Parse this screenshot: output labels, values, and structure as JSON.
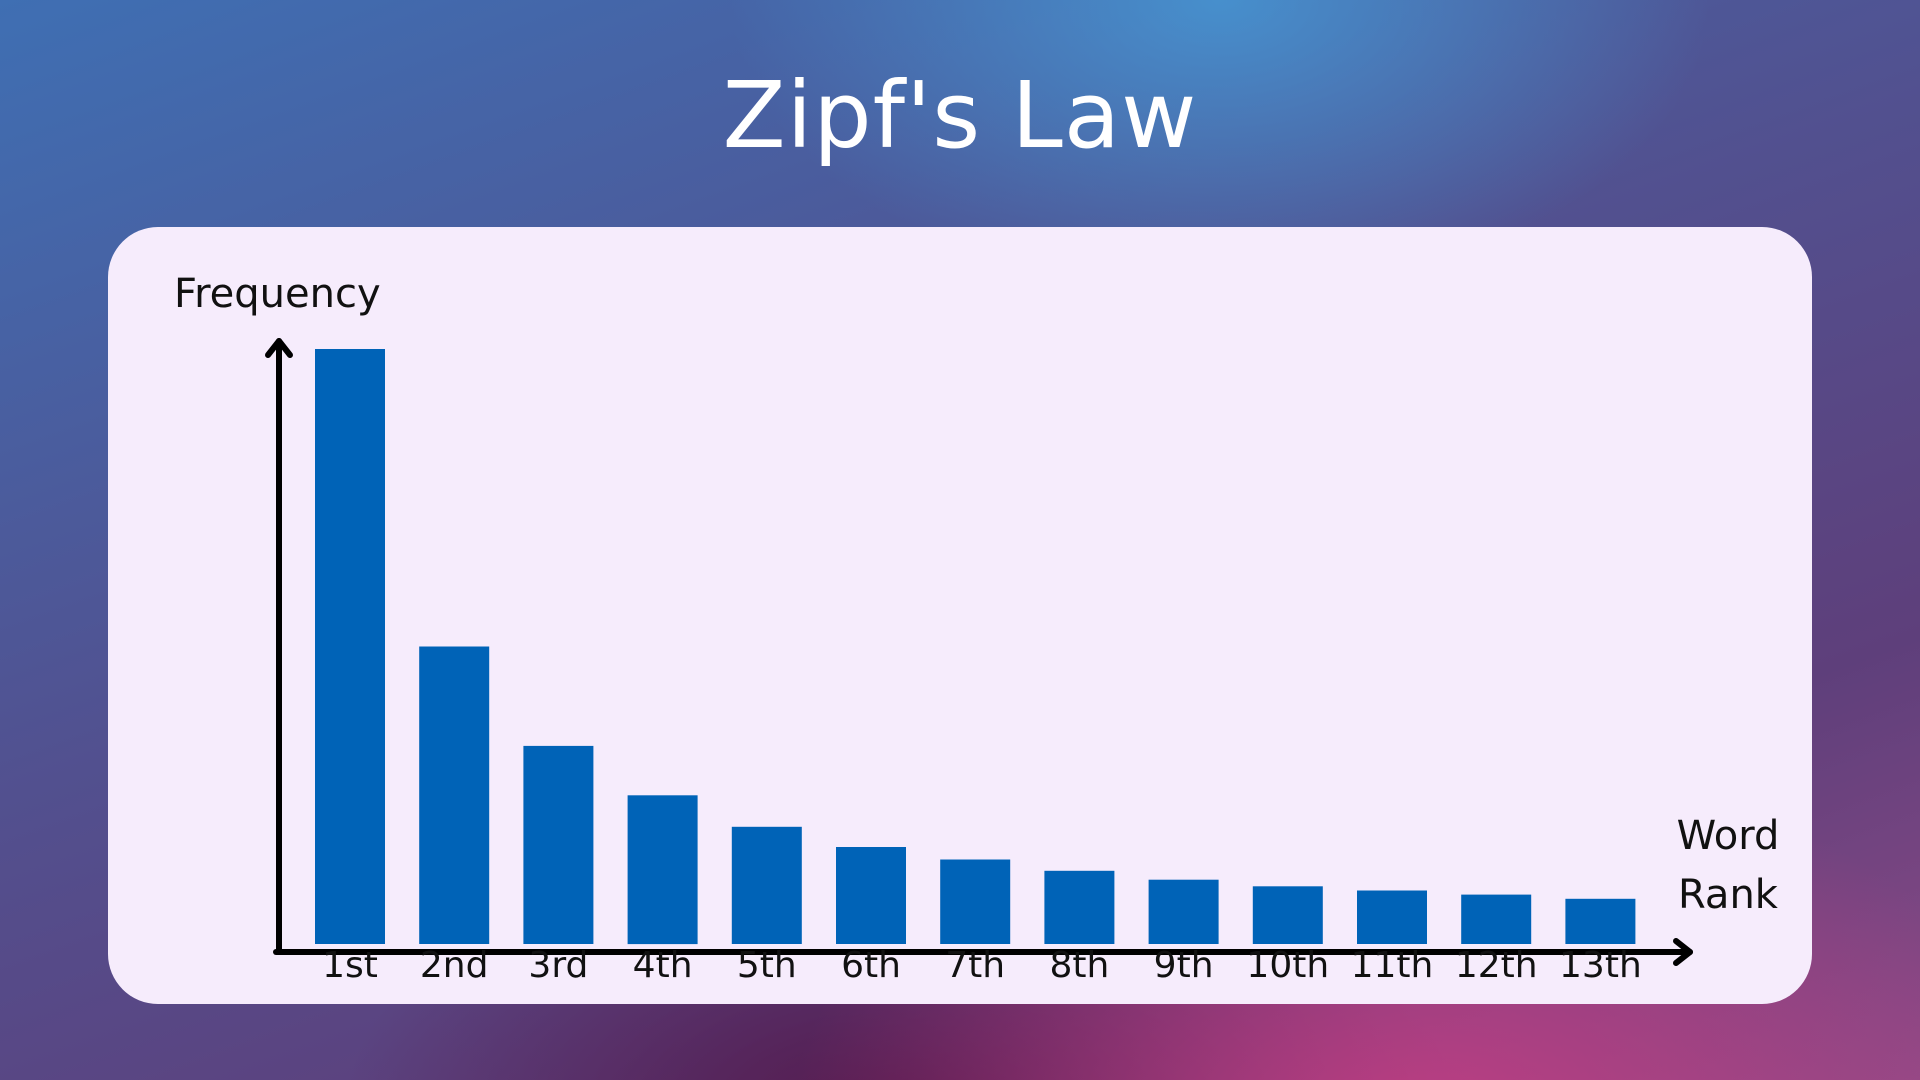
{
  "title": "Zipf's Law",
  "chart_data": {
    "type": "bar",
    "title": "Zipf's Law",
    "ylabel": "Frequency",
    "xlabel": "Word Rank",
    "xlabel_lines": [
      "Word",
      "Rank"
    ],
    "categories": [
      "1st",
      "2nd",
      "3rd",
      "4th",
      "5th",
      "6th",
      "7th",
      "8th",
      "9th",
      "10th",
      "11th",
      "12th",
      "13th"
    ],
    "values": [
      1.0,
      0.5,
      0.333,
      0.25,
      0.197,
      0.163,
      0.142,
      0.123,
      0.108,
      0.097,
      0.09,
      0.083,
      0.076
    ],
    "ylim": [
      0,
      1
    ],
    "grid": false,
    "legend": "none",
    "bar_color": "#0063b7",
    "axis_color": "#000000"
  }
}
